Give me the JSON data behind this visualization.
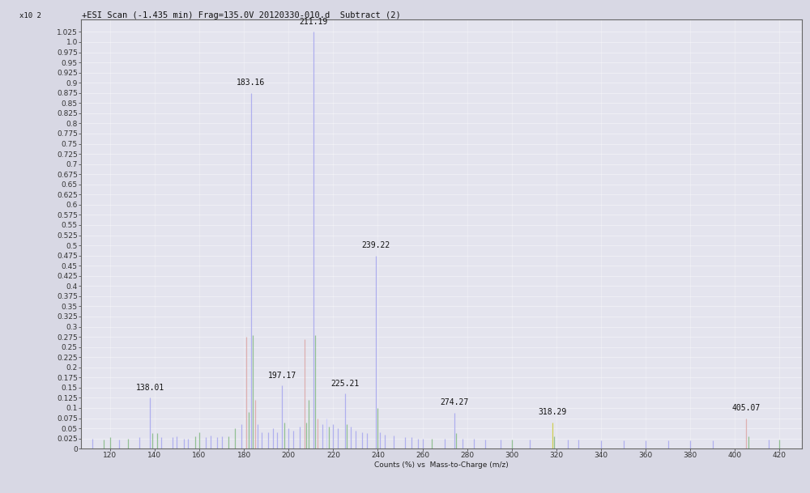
{
  "title": "+ESI Scan (-1.435 min) Frag=135.0V 20120330-010.d  Subtract (2)",
  "xlabel": "Counts (%) vs  Mass-to-Charge (m/z)",
  "ylabel": "x10 2",
  "xlim": [
    107,
    430
  ],
  "ylim": [
    0,
    1.055
  ],
  "background_color": "#d8d8e4",
  "plot_bg_color": "#e4e4ee",
  "peaks": [
    {
      "mz": 112.0,
      "intensity": 0.025,
      "label": "",
      "color": "#aaaaee"
    },
    {
      "mz": 117.0,
      "intensity": 0.022,
      "label": "",
      "color": "#88bb88"
    },
    {
      "mz": 120.0,
      "intensity": 0.028,
      "label": "",
      "color": "#88bb88"
    },
    {
      "mz": 124.0,
      "intensity": 0.022,
      "label": "",
      "color": "#aaaaee"
    },
    {
      "mz": 128.0,
      "intensity": 0.025,
      "label": "",
      "color": "#88bb88"
    },
    {
      "mz": 133.0,
      "intensity": 0.028,
      "label": "",
      "color": "#aaaaee"
    },
    {
      "mz": 138.01,
      "intensity": 0.125,
      "label": "138.01",
      "color": "#aaaaee"
    },
    {
      "mz": 139.0,
      "intensity": 0.038,
      "label": "",
      "color": "#88bb88"
    },
    {
      "mz": 141.0,
      "intensity": 0.038,
      "label": "",
      "color": "#88bb88"
    },
    {
      "mz": 143.0,
      "intensity": 0.028,
      "label": "",
      "color": "#aaaaee"
    },
    {
      "mz": 148.0,
      "intensity": 0.028,
      "label": "",
      "color": "#aaaaee"
    },
    {
      "mz": 150.0,
      "intensity": 0.03,
      "label": "",
      "color": "#aaaaee"
    },
    {
      "mz": 153.0,
      "intensity": 0.025,
      "label": "",
      "color": "#aaaaee"
    },
    {
      "mz": 155.0,
      "intensity": 0.025,
      "label": "",
      "color": "#aaaaee"
    },
    {
      "mz": 158.0,
      "intensity": 0.03,
      "label": "",
      "color": "#88bb88"
    },
    {
      "mz": 160.0,
      "intensity": 0.04,
      "label": "",
      "color": "#88bb88"
    },
    {
      "mz": 163.0,
      "intensity": 0.028,
      "label": "",
      "color": "#aaaaee"
    },
    {
      "mz": 165.0,
      "intensity": 0.032,
      "label": "",
      "color": "#aaaaee"
    },
    {
      "mz": 168.0,
      "intensity": 0.028,
      "label": "",
      "color": "#aaaaee"
    },
    {
      "mz": 170.0,
      "intensity": 0.03,
      "label": "",
      "color": "#aaaaee"
    },
    {
      "mz": 173.0,
      "intensity": 0.03,
      "label": "",
      "color": "#88bb88"
    },
    {
      "mz": 176.0,
      "intensity": 0.05,
      "label": "",
      "color": "#88bb88"
    },
    {
      "mz": 179.0,
      "intensity": 0.06,
      "label": "",
      "color": "#aaaaee"
    },
    {
      "mz": 181.0,
      "intensity": 0.275,
      "label": "",
      "color": "#ddaaaa"
    },
    {
      "mz": 182.0,
      "intensity": 0.09,
      "label": "",
      "color": "#88bb88"
    },
    {
      "mz": 183.16,
      "intensity": 0.875,
      "label": "183.16",
      "color": "#aaaaee"
    },
    {
      "mz": 184.0,
      "intensity": 0.28,
      "label": "",
      "color": "#88bb88"
    },
    {
      "mz": 185.0,
      "intensity": 0.12,
      "label": "",
      "color": "#ddaaaa"
    },
    {
      "mz": 186.0,
      "intensity": 0.06,
      "label": "",
      "color": "#aaaaee"
    },
    {
      "mz": 188.0,
      "intensity": 0.04,
      "label": "",
      "color": "#aaaaee"
    },
    {
      "mz": 191.0,
      "intensity": 0.04,
      "label": "",
      "color": "#aaaaee"
    },
    {
      "mz": 193.0,
      "intensity": 0.05,
      "label": "",
      "color": "#aaaaee"
    },
    {
      "mz": 195.0,
      "intensity": 0.04,
      "label": "",
      "color": "#aaaaee"
    },
    {
      "mz": 197.17,
      "intensity": 0.155,
      "label": "197.17",
      "color": "#aaaaee"
    },
    {
      "mz": 198.0,
      "intensity": 0.065,
      "label": "",
      "color": "#88bb88"
    },
    {
      "mz": 200.0,
      "intensity": 0.05,
      "label": "",
      "color": "#aaaaee"
    },
    {
      "mz": 202.0,
      "intensity": 0.045,
      "label": "",
      "color": "#aaaaee"
    },
    {
      "mz": 205.0,
      "intensity": 0.055,
      "label": "",
      "color": "#aaaaee"
    },
    {
      "mz": 207.0,
      "intensity": 0.27,
      "label": "",
      "color": "#ddaaaa"
    },
    {
      "mz": 208.0,
      "intensity": 0.065,
      "label": "",
      "color": "#88bb88"
    },
    {
      "mz": 209.0,
      "intensity": 0.12,
      "label": "",
      "color": "#88bb88"
    },
    {
      "mz": 211.19,
      "intensity": 1.025,
      "label": "211.19",
      "color": "#aaaaee"
    },
    {
      "mz": 212.0,
      "intensity": 0.28,
      "label": "",
      "color": "#88bb88"
    },
    {
      "mz": 213.0,
      "intensity": 0.075,
      "label": "",
      "color": "#ddaaaa"
    },
    {
      "mz": 215.0,
      "intensity": 0.06,
      "label": "",
      "color": "#aaaaee"
    },
    {
      "mz": 217.0,
      "intensity": 0.075,
      "label": "",
      "color": "#ccccff"
    },
    {
      "mz": 218.0,
      "intensity": 0.055,
      "label": "",
      "color": "#88bb88"
    },
    {
      "mz": 220.0,
      "intensity": 0.06,
      "label": "",
      "color": "#aaaaee"
    },
    {
      "mz": 222.0,
      "intensity": 0.05,
      "label": "",
      "color": "#aaaaee"
    },
    {
      "mz": 225.21,
      "intensity": 0.135,
      "label": "225.21",
      "color": "#aaaaee"
    },
    {
      "mz": 226.0,
      "intensity": 0.06,
      "label": "",
      "color": "#88bb88"
    },
    {
      "mz": 228.0,
      "intensity": 0.055,
      "label": "",
      "color": "#aaaaee"
    },
    {
      "mz": 230.0,
      "intensity": 0.045,
      "label": "",
      "color": "#aaaaee"
    },
    {
      "mz": 233.0,
      "intensity": 0.04,
      "label": "",
      "color": "#aaaaee"
    },
    {
      "mz": 235.0,
      "intensity": 0.038,
      "label": "",
      "color": "#aaaaee"
    },
    {
      "mz": 239.22,
      "intensity": 0.475,
      "label": "239.22",
      "color": "#aaaaee"
    },
    {
      "mz": 240.0,
      "intensity": 0.1,
      "label": "",
      "color": "#88bb88"
    },
    {
      "mz": 241.0,
      "intensity": 0.04,
      "label": "",
      "color": "#aaaaee"
    },
    {
      "mz": 243.0,
      "intensity": 0.035,
      "label": "",
      "color": "#aaaaee"
    },
    {
      "mz": 247.0,
      "intensity": 0.033,
      "label": "",
      "color": "#aaaaee"
    },
    {
      "mz": 252.0,
      "intensity": 0.028,
      "label": "",
      "color": "#aaaaee"
    },
    {
      "mz": 255.0,
      "intensity": 0.028,
      "label": "",
      "color": "#aaaaee"
    },
    {
      "mz": 258.0,
      "intensity": 0.025,
      "label": "",
      "color": "#aaaaee"
    },
    {
      "mz": 260.0,
      "intensity": 0.025,
      "label": "",
      "color": "#aaaaee"
    },
    {
      "mz": 264.0,
      "intensity": 0.025,
      "label": "",
      "color": "#88bb88"
    },
    {
      "mz": 270.0,
      "intensity": 0.025,
      "label": "",
      "color": "#aaaaee"
    },
    {
      "mz": 274.27,
      "intensity": 0.088,
      "label": "274.27",
      "color": "#aaaaee"
    },
    {
      "mz": 275.0,
      "intensity": 0.038,
      "label": "",
      "color": "#88bb88"
    },
    {
      "mz": 278.0,
      "intensity": 0.025,
      "label": "",
      "color": "#aaaaee"
    },
    {
      "mz": 283.0,
      "intensity": 0.025,
      "label": "",
      "color": "#aaaaee"
    },
    {
      "mz": 288.0,
      "intensity": 0.022,
      "label": "",
      "color": "#aaaaee"
    },
    {
      "mz": 295.0,
      "intensity": 0.022,
      "label": "",
      "color": "#aaaaee"
    },
    {
      "mz": 300.0,
      "intensity": 0.022,
      "label": "",
      "color": "#88bb88"
    },
    {
      "mz": 308.0,
      "intensity": 0.022,
      "label": "",
      "color": "#aaaaee"
    },
    {
      "mz": 318.29,
      "intensity": 0.065,
      "label": "318.29",
      "color": "#cccc44"
    },
    {
      "mz": 319.0,
      "intensity": 0.03,
      "label": "",
      "color": "#88bb88"
    },
    {
      "mz": 325.0,
      "intensity": 0.022,
      "label": "",
      "color": "#aaaaee"
    },
    {
      "mz": 330.0,
      "intensity": 0.022,
      "label": "",
      "color": "#aaaaee"
    },
    {
      "mz": 340.0,
      "intensity": 0.02,
      "label": "",
      "color": "#aaaaee"
    },
    {
      "mz": 350.0,
      "intensity": 0.02,
      "label": "",
      "color": "#aaaaee"
    },
    {
      "mz": 360.0,
      "intensity": 0.02,
      "label": "",
      "color": "#aaaaee"
    },
    {
      "mz": 370.0,
      "intensity": 0.02,
      "label": "",
      "color": "#aaaaee"
    },
    {
      "mz": 380.0,
      "intensity": 0.02,
      "label": "",
      "color": "#aaaaee"
    },
    {
      "mz": 390.0,
      "intensity": 0.02,
      "label": "",
      "color": "#aaaaee"
    },
    {
      "mz": 405.07,
      "intensity": 0.075,
      "label": "405.07",
      "color": "#ddaaaa"
    },
    {
      "mz": 406.0,
      "intensity": 0.03,
      "label": "",
      "color": "#88bb88"
    },
    {
      "mz": 415.0,
      "intensity": 0.022,
      "label": "",
      "color": "#aaaaee"
    },
    {
      "mz": 420.0,
      "intensity": 0.022,
      "label": "",
      "color": "#88bb88"
    }
  ],
  "yticks": [
    0,
    0.025,
    0.05,
    0.075,
    0.1,
    0.125,
    0.15,
    0.175,
    0.2,
    0.225,
    0.25,
    0.275,
    0.3,
    0.325,
    0.35,
    0.375,
    0.4,
    0.425,
    0.45,
    0.475,
    0.5,
    0.525,
    0.55,
    0.575,
    0.6,
    0.625,
    0.65,
    0.675,
    0.7,
    0.725,
    0.75,
    0.775,
    0.8,
    0.825,
    0.85,
    0.875,
    0.9,
    0.925,
    0.95,
    0.975,
    1.0,
    1.025
  ],
  "xticks": [
    120,
    140,
    160,
    180,
    200,
    220,
    240,
    260,
    280,
    300,
    320,
    340,
    360,
    380,
    400,
    420
  ],
  "grid_color": "#ffffff",
  "tick_fontsize": 6.5,
  "title_fontsize": 7.5,
  "annotation_fontsize": 7.0
}
